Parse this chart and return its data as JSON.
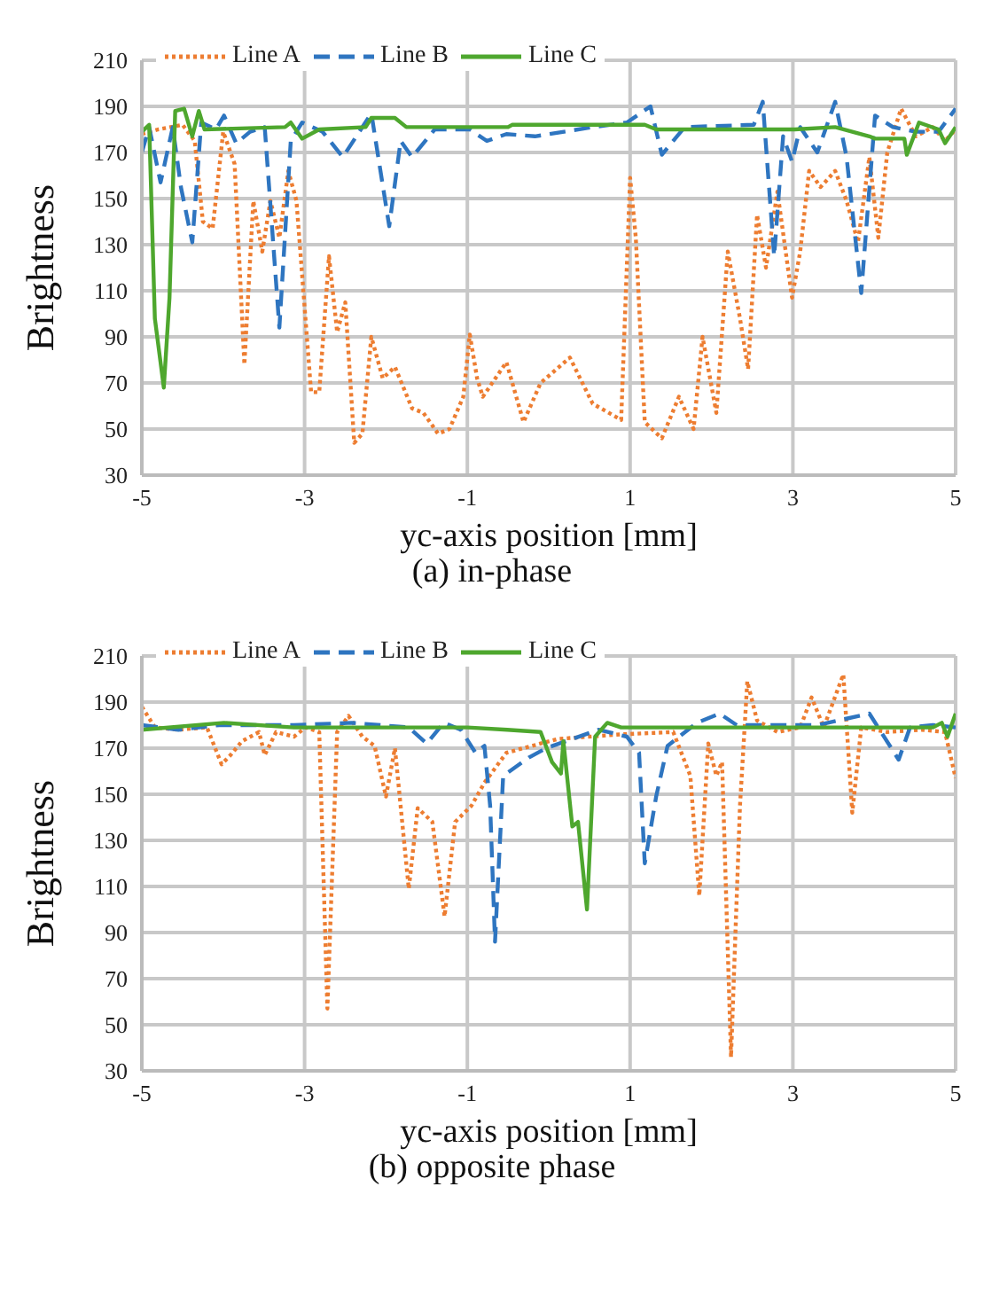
{
  "chart_data": [
    {
      "type": "line",
      "title": "(a) in-phase",
      "xlabel": "yc-axis position [mm]",
      "ylabel": "Brightness",
      "xlim": [
        -5,
        5
      ],
      "xticks": [
        -5,
        -3,
        -1,
        1,
        3,
        5
      ],
      "ylim": [
        30,
        210
      ],
      "yticks": [
        30,
        50,
        70,
        90,
        110,
        130,
        150,
        170,
        190,
        210
      ],
      "grid": true,
      "legend": "top",
      "marker": "none",
      "series": [
        {
          "name": "Line A",
          "color": "#ed7d31",
          "line_style": "dotted",
          "x": [
            -5,
            -4.8,
            -4.5,
            -4.35,
            -4.25,
            -4.13,
            -4.0,
            -3.86,
            -3.74,
            -3.63,
            -3.52,
            -3.42,
            -3.31,
            -3.2,
            -3.1,
            -2.92,
            -2.82,
            -2.7,
            -2.6,
            -2.5,
            -2.39,
            -2.29,
            -2.18,
            -2.04,
            -1.89,
            -1.68,
            -1.54,
            -1.36,
            -1.22,
            -1.05,
            -0.97,
            -0.88,
            -0.81,
            -0.52,
            -0.31,
            -0.1,
            0.26,
            0.54,
            0.89,
            1.0,
            1.07,
            1.18,
            1.39,
            1.6,
            1.78,
            1.89,
            2.06,
            2.2,
            2.35,
            2.45,
            2.56,
            2.67,
            2.81,
            2.99,
            3.09,
            3.2,
            3.34,
            3.52,
            3.66,
            3.8,
            3.94,
            4.05,
            4.16,
            4.33,
            4.51,
            4.72,
            4.87,
            5
          ],
          "values": [
            178,
            180,
            182,
            175,
            140,
            137,
            179,
            165,
            78,
            149,
            127,
            149,
            133,
            162,
            149,
            66,
            66,
            125,
            92,
            105,
            44,
            48,
            90,
            72,
            77,
            59,
            57,
            48,
            50,
            64,
            91,
            72,
            64,
            79,
            53,
            70,
            81,
            61,
            54,
            159,
            133,
            53,
            46,
            64,
            50,
            90,
            57,
            127,
            98,
            76,
            143,
            120,
            153,
            107,
            127,
            162,
            155,
            162,
            149,
            131,
            168,
            133,
            170,
            189,
            177,
            181,
            175,
            180
          ]
        },
        {
          "name": "Line B",
          "color": "#2e75c0",
          "line_style": "dashed",
          "x": [
            -5,
            -4.91,
            -4.77,
            -4.62,
            -4.52,
            -4.38,
            -4.27,
            -4.09,
            -3.99,
            -3.84,
            -3.67,
            -3.49,
            -3.31,
            -3.17,
            -3.03,
            -2.78,
            -2.53,
            -2.18,
            -1.96,
            -1.82,
            -1.68,
            -1.4,
            -0.97,
            -0.76,
            -0.52,
            -0.17,
            0.54,
            0.96,
            1.25,
            1.39,
            1.67,
            2.52,
            2.63,
            2.77,
            2.88,
            2.99,
            3.09,
            3.3,
            3.52,
            3.66,
            3.84,
            4.01,
            4.23,
            4.51,
            4.79,
            5
          ],
          "values": [
            170,
            181,
            157,
            181,
            155,
            131,
            183,
            180,
            186,
            174,
            179,
            181,
            94,
            175,
            183,
            179,
            168,
            187,
            138,
            175,
            168,
            180,
            180,
            175,
            178,
            177,
            181,
            183,
            190,
            169,
            181,
            182,
            192,
            125,
            177,
            166,
            181,
            170,
            192,
            168,
            109,
            186,
            181,
            179,
            179,
            189
          ]
        },
        {
          "name": "Line C",
          "color": "#4ea72e",
          "line_style": "solid",
          "x": [
            -5,
            -4.91,
            -4.84,
            -4.73,
            -4.66,
            -4.59,
            -4.48,
            -4.38,
            -4.3,
            -4.23,
            -3.24,
            -3.17,
            -3.03,
            -2.82,
            -2.25,
            -2.18,
            -1.89,
            -1.75,
            -0.5,
            -0.45,
            1.18,
            1.32,
            3.02,
            3.52,
            3.94,
            4.01,
            4.37,
            4.4,
            4.55,
            4.79,
            4.87,
            5
          ],
          "values": [
            179,
            182,
            98,
            68,
            107,
            188,
            189,
            177,
            188,
            180,
            181,
            183,
            176,
            180,
            181,
            185,
            185,
            181,
            181,
            182,
            182,
            180,
            180,
            181,
            177,
            176,
            176,
            169,
            183,
            180,
            174,
            181
          ]
        }
      ]
    },
    {
      "type": "line",
      "title": "(b) opposite phase",
      "xlabel": "yc-axis position [mm]",
      "ylabel": "Brightness",
      "xlim": [
        -5,
        5
      ],
      "xticks": [
        -5,
        -3,
        -1,
        1,
        3,
        5
      ],
      "ylim": [
        30,
        210
      ],
      "yticks": [
        30,
        50,
        70,
        90,
        110,
        130,
        150,
        170,
        190,
        210
      ],
      "grid": true,
      "legend": "top",
      "marker": "none",
      "series": [
        {
          "name": "Line A",
          "color": "#ed7d31",
          "line_style": "dotted",
          "x": [
            -5,
            -4.84,
            -4.55,
            -4.2,
            -4.02,
            -3.91,
            -3.77,
            -3.56,
            -3.49,
            -3.35,
            -3.13,
            -2.99,
            -2.82,
            -2.72,
            -2.6,
            -2.46,
            -2.29,
            -2.14,
            -2.0,
            -1.89,
            -1.72,
            -1.61,
            -1.43,
            -1.28,
            -1.15,
            -0.95,
            -0.79,
            -0.52,
            0.11,
            0.89,
            1.53,
            1.74,
            1.85,
            1.96,
            2.06,
            2.13,
            2.24,
            2.35,
            2.44,
            2.56,
            2.81,
            3.09,
            3.23,
            3.38,
            3.62,
            3.73,
            3.84,
            4.16,
            4.58,
            4.87,
            5
          ],
          "values": [
            188,
            179,
            178,
            179,
            163,
            167,
            173,
            177,
            167,
            177,
            175,
            179,
            177,
            57,
            177,
            184,
            175,
            171,
            149,
            170,
            109,
            144,
            138,
            97,
            138,
            145,
            155,
            168,
            174,
            176,
            177,
            158,
            106,
            172,
            158,
            164,
            36,
            145,
            199,
            182,
            177,
            179,
            192,
            179,
            202,
            142,
            179,
            177,
            178,
            177,
            157
          ]
        },
        {
          "name": "Line B",
          "color": "#2e75c0",
          "line_style": "dashed",
          "x": [
            -5,
            -4.55,
            -4.05,
            -3.13,
            -2.42,
            -1.72,
            -1.5,
            -1.29,
            -1.08,
            -0.9,
            -0.79,
            -0.72,
            -0.66,
            -0.56,
            -0.24,
            -0.03,
            0.61,
            0.96,
            1.11,
            1.18,
            1.32,
            1.46,
            1.82,
            2.1,
            2.31,
            2.74,
            3.3,
            3.94,
            4.3,
            4.44,
            4.72,
            5
          ],
          "values": [
            180,
            178,
            180,
            180,
            181,
            179,
            172,
            181,
            178,
            168,
            171,
            145,
            86,
            158,
            166,
            170,
            178,
            175,
            168,
            120,
            149,
            171,
            181,
            185,
            180,
            180,
            180,
            185,
            165,
            179,
            180,
            179
          ]
        },
        {
          "name": "Line C",
          "color": "#4ea72e",
          "line_style": "solid",
          "x": [
            -5,
            -3.99,
            -3.13,
            -1.0,
            -0.51,
            -0.1,
            0.04,
            0.15,
            0.18,
            0.29,
            0.36,
            0.47,
            0.57,
            0.72,
            0.89,
            4.72,
            4.83,
            4.9,
            5
          ],
          "values": [
            178,
            181,
            179,
            179,
            178,
            177,
            164,
            159,
            173,
            136,
            138,
            100,
            175,
            181,
            179,
            179,
            181,
            175,
            185
          ]
        }
      ]
    }
  ]
}
